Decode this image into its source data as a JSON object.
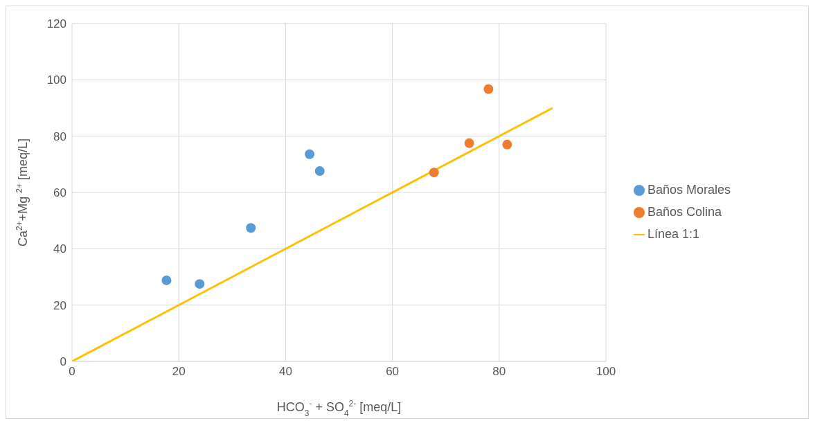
{
  "chart_data": {
    "type": "scatter",
    "xlabel": "HCO$_{3}$$^{-}$ + SO$_{4}$$^{2-}$ [meq/L]",
    "ylabel": "Ca$^{2+}$+Mg $^{2+}$ [meq/L]",
    "xlim": [
      0,
      100
    ],
    "xticks": [
      0,
      20,
      40,
      60,
      80,
      100
    ],
    "ylim": [
      0,
      120
    ],
    "yticks": [
      0,
      20,
      40,
      60,
      80,
      100,
      120
    ],
    "grid": true,
    "legend": "right",
    "marker": "circle",
    "series": [
      {
        "name": "Baños Morales",
        "color": "#5b9bd5",
        "x": [
          17.7,
          23.9,
          33.5,
          44.5,
          46.4
        ],
        "values": [
          28.8,
          27.5,
          47.4,
          73.6,
          67.6
        ]
      },
      {
        "name": "Baños Colina",
        "color": "#ed7d31",
        "x": [
          67.8,
          74.4,
          78.0,
          81.5
        ],
        "values": [
          67.1,
          77.5,
          96.7,
          77.0
        ]
      },
      {
        "name": "Línea 1:1",
        "type": "line",
        "color": "#ffc000",
        "line_style": "solid",
        "marker": "none",
        "x": [
          0,
          90
        ],
        "values": [
          0,
          90
        ]
      }
    ]
  }
}
